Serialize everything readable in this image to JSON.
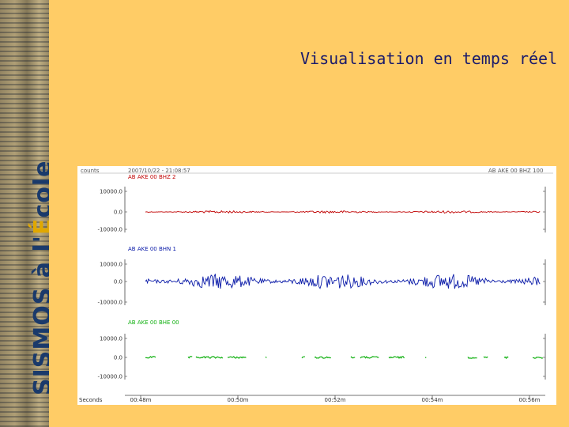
{
  "branding": {
    "text_main": "SISMOS à l'",
    "text_accent": "É",
    "text_end": "cole",
    "accent_color": "#e0a800",
    "text_color": "#1a3a6b"
  },
  "slide": {
    "title": "Visualisation en temps réel",
    "background_color": "#FFCC66"
  },
  "chart_data": {
    "type": "line",
    "header_left_label": "counts",
    "header_center": "2007/10/22 - 21:08:57",
    "header_right": "AB AKE 00 BHZ 100",
    "x_label": "Seconds",
    "x_ticks": [
      "00:48m",
      "00:50m",
      "00:52m",
      "00:54m",
      "00:56m"
    ],
    "x_range": [
      0,
      4
    ],
    "traces": [
      {
        "name": "AB AKE 00 BHZ 2",
        "color": "#c00000",
        "yticks": [
          "10000.0",
          "0.0",
          "-10000.0"
        ],
        "ylim": [
          -10000,
          10000
        ],
        "amplitude": 600,
        "gapped": false
      },
      {
        "name": "AB AKE 00 BHN 1",
        "color": "#0a1aa8",
        "yticks": [
          "10000.0",
          "0.0",
          "-10000.0"
        ],
        "ylim": [
          -10000,
          10000
        ],
        "amplitude": 4500,
        "gapped": false
      },
      {
        "name": "AB AKE 00 BHE 00",
        "color": "#10b010",
        "yticks": [
          "10000.0",
          "0.0",
          "-10000.0"
        ],
        "ylim": [
          -10000,
          10000
        ],
        "amplitude": 500,
        "gapped": true
      }
    ]
  }
}
